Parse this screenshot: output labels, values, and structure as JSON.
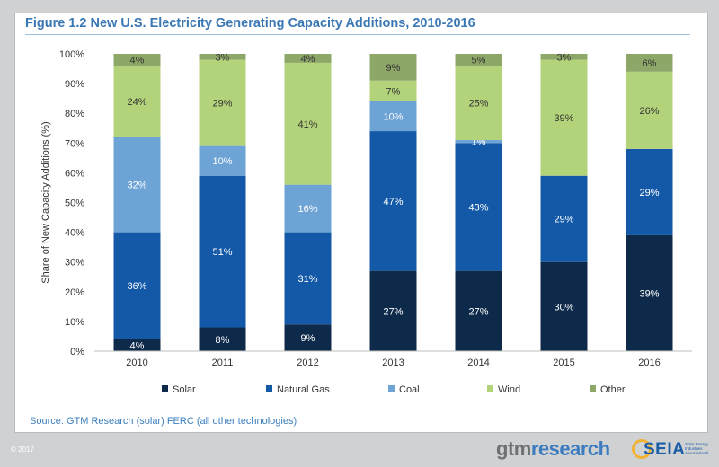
{
  "figure": {
    "title": "Figure 1.2  New U.S. Electricity Generating Capacity Additions, 2010-2016",
    "source": "Source: GTM Research (solar) FERC (all other technologies)"
  },
  "footer": {
    "copyright": "© 2017",
    "gtm_logo_a": "gtm",
    "gtm_logo_b": "research",
    "seia_logo": "SEIA",
    "seia_tagline": "Solar Energy Industries Association®"
  },
  "chart_data": {
    "type": "bar",
    "stacked": true,
    "categories": [
      "2010",
      "2011",
      "2012",
      "2013",
      "2014",
      "2015",
      "2016"
    ],
    "ylabel": "Share of New Capacity Additions (%)",
    "xlabel": "",
    "ylim": [
      0,
      100
    ],
    "yticks": [
      "0%",
      "10%",
      "20%",
      "30%",
      "40%",
      "50%",
      "60%",
      "70%",
      "80%",
      "90%",
      "100%"
    ],
    "legend_position": "bottom",
    "grid": false,
    "series": [
      {
        "name": "Solar",
        "color": "#0e2a4a",
        "values": [
          4,
          8,
          9,
          27,
          27,
          30,
          39
        ],
        "labels": [
          "4%",
          "8%",
          "9%",
          "27%",
          "27%",
          "30%",
          "39%"
        ]
      },
      {
        "name": "Natural Gas",
        "color": "#1459a8",
        "values": [
          36,
          51,
          31,
          47,
          43,
          29,
          29
        ],
        "labels": [
          "36%",
          "51%",
          "31%",
          "47%",
          "43%",
          "29%",
          "29%"
        ]
      },
      {
        "name": "Coal",
        "color": "#6ea3d6",
        "values": [
          32,
          10,
          16,
          10,
          1,
          0,
          0
        ],
        "labels": [
          "32%",
          "10%",
          "16%",
          "10%",
          "1%",
          "",
          ""
        ]
      },
      {
        "name": "Wind",
        "color": "#b3d37a",
        "values": [
          24,
          29,
          41,
          7,
          25,
          39,
          26
        ],
        "labels": [
          "24%",
          "29%",
          "41%",
          "7%",
          "25%",
          "39%",
          "26%"
        ]
      },
      {
        "name": "Other",
        "color": "#8da768",
        "values": [
          4,
          3,
          4,
          9,
          5,
          3,
          6
        ],
        "labels": [
          "4%",
          "3%",
          "4%",
          "9%",
          "5%",
          "3%",
          "6%"
        ]
      }
    ]
  }
}
